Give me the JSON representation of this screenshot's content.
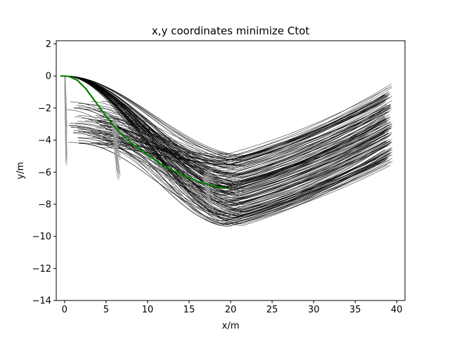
{
  "chart_data": {
    "type": "line",
    "title": "x,y coordinates minimize Ctot",
    "xlabel": "x/m",
    "ylabel": "y/m",
    "xlim": [
      -1,
      41
    ],
    "ylim": [
      -14,
      2.2
    ],
    "xticks": [
      0,
      5,
      10,
      15,
      20,
      25,
      30,
      35,
      40
    ],
    "yticks": [
      2,
      0,
      -2,
      -4,
      -6,
      -8,
      -10,
      -12,
      -14
    ],
    "ytick_labels": [
      "2",
      "0",
      "−2",
      "−4",
      "−6",
      "−8",
      "−10",
      "−12",
      "−14"
    ],
    "grid": false,
    "legend": "none",
    "colors": {
      "candidate_paths": "#000000",
      "sampled_segments": "#999999",
      "optimal_path": "#008000"
    },
    "candidate_paths": {
      "x_start": 0,
      "x_end": 39.5,
      "y_start": 0,
      "trough_x_range": [
        19,
        22
      ],
      "trough_y_range": [
        -4.7,
        -9.4
      ],
      "end_y_range": [
        -0.7,
        -5.4
      ]
    },
    "sampled_segments": [
      {
        "x_range": [
          0,
          0.3
        ],
        "y_start": 0,
        "y_end_range": [
          -1.2,
          -5.6
        ]
      },
      {
        "x_range": [
          5.8,
          6.8
        ],
        "y_start": -2.7,
        "y_end_range": [
          -3.5,
          -6.5
        ]
      },
      {
        "x_range": [
          16.7,
          18.3
        ],
        "y_start": -6.3,
        "y_end_range": [
          -5.6,
          -8.4
        ]
      }
    ],
    "series": [
      {
        "x": [
          -0.5,
          0.5,
          1.5,
          2.5,
          3.5,
          4.5,
          5.5,
          6.5,
          7.5,
          8.5,
          9.5,
          10.5,
          11.5,
          12.5,
          13.5,
          14.5,
          15.5,
          16.5,
          17.5,
          18.5,
          19.5
        ],
        "y": [
          0,
          -0.02,
          -0.25,
          -0.75,
          -1.45,
          -2.15,
          -2.85,
          -3.45,
          -3.95,
          -4.35,
          -4.75,
          -5.1,
          -5.45,
          -5.75,
          -6.0,
          -6.25,
          -6.45,
          -6.65,
          -6.8,
          -6.92,
          -7.0
        ]
      }
    ]
  }
}
